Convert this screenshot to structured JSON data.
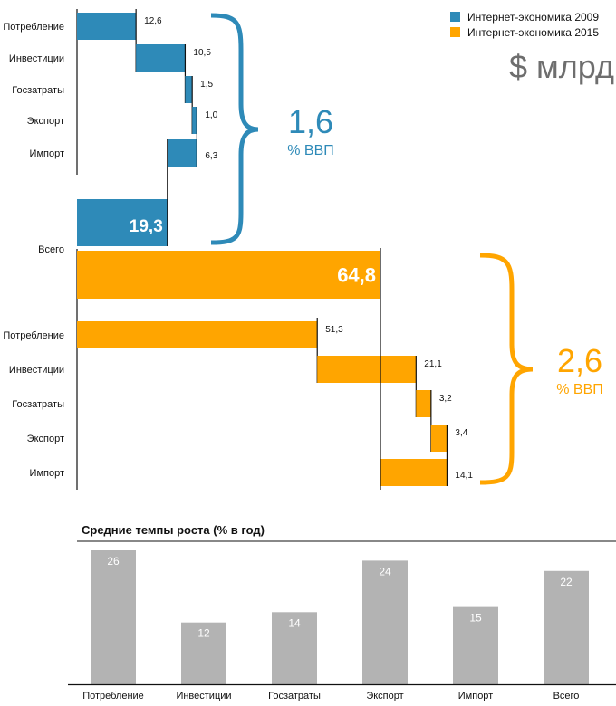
{
  "chart_data": [
    {
      "type": "waterfall",
      "unit": "$ млрд",
      "legend": [
        {
          "name": "Интернет-экономика 2009",
          "color": "#2e8ab8"
        },
        {
          "name": "Интернет-экономика 2015",
          "color": "#ffa500"
        }
      ],
      "legend_placement": "top-right",
      "total_label": "Всего",
      "series": [
        {
          "name": "Интернет-экономика 2009",
          "color": "#2e8ab8",
          "categories": [
            "Потребление",
            "Инвестиции",
            "Госзатраты",
            "Экспорт",
            "Импорт"
          ],
          "values": [
            12.6,
            10.5,
            1.5,
            1.0,
            -6.3
          ],
          "value_labels": [
            "12,6",
            "10,5",
            "1,5",
            "1,0",
            "6,3"
          ],
          "total": 19.3,
          "total_label": "19,3",
          "gdp_share": "1,6",
          "gdp_share_unit": "% ВВП"
        },
        {
          "name": "Интернет-экономика 2015",
          "color": "#ffa500",
          "categories": [
            "Потребление",
            "Инвестиции",
            "Госзатраты",
            "Экспорт",
            "Импорт"
          ],
          "values": [
            51.3,
            21.1,
            3.2,
            3.4,
            -14.1
          ],
          "value_labels": [
            "51,3",
            "21,1",
            "3,2",
            "3,4",
            "14,1"
          ],
          "total": 64.8,
          "total_label": "64,8",
          "gdp_share": "2,6",
          "gdp_share_unit": "% ВВП"
        }
      ]
    },
    {
      "type": "bar",
      "title": "Средние темпы роста (% в год)",
      "categories": [
        "Потребление",
        "Инвестиции",
        "Госзатраты",
        "Экспорт",
        "Импорт",
        "Всего"
      ],
      "values": [
        26,
        12,
        14,
        24,
        15,
        22
      ],
      "value_labels": [
        "26",
        "12",
        "14",
        "24",
        "15",
        "22"
      ],
      "color": "#b3b3b3",
      "ylim": [
        0,
        26
      ],
      "grid": false
    }
  ]
}
